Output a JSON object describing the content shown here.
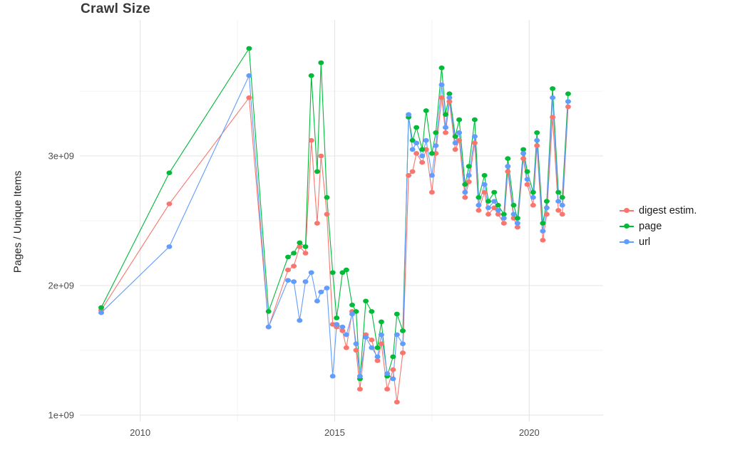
{
  "page": {
    "background": "#ffffff"
  },
  "chart_data": {
    "type": "line",
    "title": "Crawl Size",
    "ylabel": "Pages / Unique Items",
    "xlabel": "",
    "y_units": "1e9 (values below are in billions, matching axis labels like 3e+09)",
    "marks": "points connected by lines",
    "x": [
      2009.0,
      2010.75,
      2012.8,
      2013.3,
      2013.8,
      2013.95,
      2014.1,
      2014.25,
      2014.4,
      2014.55,
      2014.65,
      2014.8,
      2014.95,
      2015.05,
      2015.2,
      2015.3,
      2015.45,
      2015.55,
      2015.65,
      2015.8,
      2015.95,
      2016.1,
      2016.2,
      2016.35,
      2016.5,
      2016.6,
      2016.75,
      2016.9,
      2017.0,
      2017.1,
      2017.25,
      2017.35,
      2017.5,
      2017.6,
      2017.75,
      2017.85,
      2017.95,
      2018.1,
      2018.2,
      2018.35,
      2018.45,
      2018.6,
      2018.7,
      2018.85,
      2018.95,
      2019.1,
      2019.2,
      2019.35,
      2019.45,
      2019.6,
      2019.7,
      2019.85,
      2019.95,
      2020.1,
      2020.2,
      2020.35,
      2020.45,
      2020.6,
      2020.75,
      2020.85,
      2021.0
    ],
    "series": [
      {
        "name": "digest estim.",
        "color": "#F8766D",
        "values": [
          1.81,
          2.63,
          3.45,
          1.68,
          2.12,
          2.15,
          2.3,
          2.25,
          3.12,
          2.48,
          3.0,
          2.55,
          1.7,
          1.68,
          1.65,
          1.52,
          1.8,
          1.5,
          1.2,
          1.62,
          1.58,
          1.42,
          1.55,
          1.2,
          1.35,
          1.1,
          1.48,
          2.85,
          2.88,
          3.02,
          2.95,
          3.05,
          2.72,
          3.02,
          3.45,
          3.18,
          3.42,
          3.05,
          3.12,
          2.68,
          2.8,
          3.1,
          2.58,
          2.72,
          2.55,
          2.6,
          2.55,
          2.48,
          2.88,
          2.52,
          2.45,
          2.98,
          2.78,
          2.62,
          3.08,
          2.35,
          2.55,
          3.3,
          2.58,
          2.55,
          3.38
        ]
      },
      {
        "name": "page",
        "color": "#00BA38",
        "values": [
          1.83,
          2.87,
          3.83,
          1.8,
          2.22,
          2.25,
          2.33,
          2.3,
          3.62,
          2.88,
          3.72,
          2.68,
          2.1,
          1.75,
          2.1,
          2.12,
          1.85,
          1.8,
          1.28,
          1.88,
          1.8,
          1.52,
          1.72,
          1.3,
          1.45,
          1.78,
          1.65,
          3.3,
          3.12,
          3.22,
          3.05,
          3.35,
          3.02,
          3.18,
          3.68,
          3.32,
          3.48,
          3.15,
          3.28,
          2.78,
          2.92,
          3.28,
          2.68,
          2.85,
          2.65,
          2.72,
          2.62,
          2.55,
          2.98,
          2.62,
          2.52,
          3.05,
          2.88,
          2.72,
          3.18,
          2.48,
          2.65,
          3.52,
          2.72,
          2.68,
          3.48
        ]
      },
      {
        "name": "url",
        "color": "#619CFF",
        "values": [
          1.79,
          2.3,
          3.62,
          1.68,
          2.04,
          2.03,
          1.73,
          2.03,
          2.1,
          1.88,
          1.95,
          1.98,
          1.3,
          1.7,
          1.68,
          1.62,
          1.78,
          1.55,
          1.3,
          1.6,
          1.52,
          1.45,
          1.62,
          1.32,
          1.28,
          1.62,
          1.55,
          3.32,
          3.05,
          3.1,
          3.0,
          3.12,
          2.85,
          3.08,
          3.55,
          3.22,
          3.45,
          3.1,
          3.18,
          2.72,
          2.85,
          3.15,
          2.62,
          2.78,
          2.6,
          2.65,
          2.58,
          2.52,
          2.92,
          2.55,
          2.48,
          3.02,
          2.82,
          2.68,
          3.12,
          2.42,
          2.6,
          3.45,
          2.65,
          2.62,
          3.42
        ]
      }
    ],
    "axes": {
      "x_domain": [
        2008.45,
        2021.9
      ],
      "y_domain": [
        0.95,
        4.05
      ],
      "x_ticks": [
        {
          "value": 2010,
          "label": "2010"
        },
        {
          "value": 2015,
          "label": "2015"
        },
        {
          "value": 2020,
          "label": "2020"
        }
      ],
      "y_ticks": [
        {
          "value": 1,
          "label": "1e+09"
        },
        {
          "value": 2,
          "label": "2e+09"
        },
        {
          "value": 3,
          "label": "3e+09"
        }
      ],
      "x_minor_gridlines": [
        2012.5,
        2017.5
      ],
      "y_minor_gridlines": [
        1.5,
        2.5,
        3.5
      ],
      "grid": true
    },
    "legend": {
      "position": "right",
      "entries": [
        "digest estim.",
        "page",
        "url"
      ]
    }
  }
}
